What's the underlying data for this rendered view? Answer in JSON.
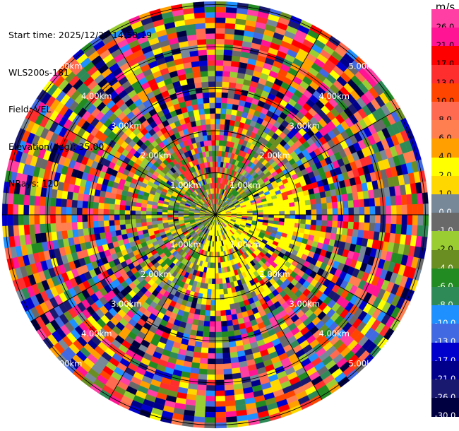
{
  "header": {
    "start_time": "Start time: 2025/12/27 14:58:19",
    "site": "WLS200s-181",
    "field": "Field: VEL",
    "elevation": "Elevation(deg): 35.00",
    "nrays": "NRays: 120"
  },
  "colorbar": {
    "unit": "m/s",
    "levels": [
      {
        "label": "26.0",
        "color": "#ff3fa3"
      },
      {
        "label": "21.0",
        "color": "#ff1493"
      },
      {
        "label": "17.0",
        "color": "#ff0000"
      },
      {
        "label": "13.0",
        "color": "#ff2e2e"
      },
      {
        "label": "10.0",
        "color": "#ff4500"
      },
      {
        "label": "8.0",
        "color": "#ff6a50"
      },
      {
        "label": "6.0",
        "color": "#ff7f50"
      },
      {
        "label": "4.0",
        "color": "#ff9f00"
      },
      {
        "label": "2.0",
        "color": "#ffff00"
      },
      {
        "label": "1.0",
        "color": "#ffd700"
      },
      {
        "label": "0.0",
        "color": "#778899"
      },
      {
        "label": "-1.0",
        "color": "#696969"
      },
      {
        "label": "-2.0",
        "color": "#9acd32"
      },
      {
        "label": "-4.0",
        "color": "#6b8e23"
      },
      {
        "label": "-6.0",
        "color": "#228b22"
      },
      {
        "label": "-8.0",
        "color": "#2e8b57"
      },
      {
        "label": "-10.0",
        "color": "#1e90ff"
      },
      {
        "label": "-13.0",
        "color": "#4169e1"
      },
      {
        "label": "-17.0",
        "color": "#0000cd"
      },
      {
        "label": "-21.0",
        "color": "#00008b"
      },
      {
        "label": "-26.0",
        "color": "#191970"
      },
      {
        "label": "-30.0",
        "color": "#000040"
      }
    ]
  },
  "chart_data": {
    "type": "heatmap",
    "projection": "polar (PPI)",
    "field": "VEL",
    "units": "m/s",
    "elevation_deg": 35.0,
    "n_rays": 120,
    "range_rings_km": [
      1.0,
      2.0,
      3.0,
      4.0,
      5.0
    ],
    "ring_labels": [
      "1.00km",
      "2.00km",
      "3.00km",
      "4.00km",
      "5.00km"
    ],
    "max_range_km": 5.0,
    "ring_label_diagonals": [
      "upper-left",
      "upper-right",
      "lower-left",
      "lower-right"
    ],
    "value_range": [
      -30.0,
      26.0
    ],
    "pattern": "near-zero velocities with yellow positive patch east/south of center; noisy multi-colour values at far ranges"
  }
}
